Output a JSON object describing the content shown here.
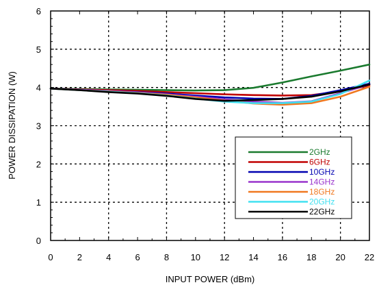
{
  "chart_data": {
    "type": "line",
    "xlabel": "INPUT POWER (dBm)",
    "ylabel": "POWER DISSIPATION (W)",
    "xlim": [
      0,
      22
    ],
    "ylim": [
      0,
      6
    ],
    "xticks": [
      0,
      2,
      4,
      6,
      8,
      10,
      12,
      14,
      16,
      18,
      20,
      22
    ],
    "yticks": [
      0,
      1,
      2,
      3,
      4,
      5,
      6
    ],
    "grid": true,
    "legend_position": "bottom-right",
    "series": [
      {
        "name": "2GHz",
        "color": "#1a7a2e",
        "x": [
          0,
          2,
          4,
          6,
          8,
          10,
          12,
          14,
          16,
          18,
          20,
          22
        ],
        "y": [
          3.97,
          3.96,
          3.95,
          3.94,
          3.93,
          3.92,
          3.93,
          3.99,
          4.13,
          4.29,
          4.44,
          4.6
        ]
      },
      {
        "name": "6GHz",
        "color": "#c00000",
        "x": [
          0,
          2,
          4,
          6,
          8,
          10,
          12,
          14,
          16,
          18,
          20,
          22
        ],
        "y": [
          3.97,
          3.95,
          3.93,
          3.91,
          3.88,
          3.85,
          3.82,
          3.8,
          3.79,
          3.8,
          3.9,
          4.05
        ]
      },
      {
        "name": "10GHz",
        "color": "#0000b0",
        "x": [
          0,
          2,
          4,
          6,
          8,
          10,
          12,
          14,
          16,
          18,
          20,
          22
        ],
        "y": [
          3.97,
          3.94,
          3.91,
          3.88,
          3.84,
          3.79,
          3.74,
          3.71,
          3.7,
          3.78,
          3.93,
          4.1
        ]
      },
      {
        "name": "14GHz",
        "color": "#9933cc",
        "x": [
          0,
          2,
          4,
          6,
          8,
          10,
          12,
          14,
          16,
          18,
          20,
          22
        ],
        "y": [
          3.97,
          3.94,
          3.91,
          3.87,
          3.82,
          3.76,
          3.69,
          3.63,
          3.6,
          3.64,
          3.85,
          4.08
        ]
      },
      {
        "name": "18GHz",
        "color": "#f07820",
        "x": [
          0,
          2,
          4,
          6,
          8,
          10,
          12,
          14,
          16,
          18,
          20,
          22
        ],
        "y": [
          3.97,
          3.93,
          3.9,
          3.86,
          3.81,
          3.74,
          3.66,
          3.58,
          3.55,
          3.59,
          3.76,
          4.02
        ]
      },
      {
        "name": "20GHz",
        "color": "#40e0f0",
        "x": [
          0,
          2,
          4,
          6,
          8,
          10,
          12,
          14,
          16,
          18,
          20,
          22
        ],
        "y": [
          3.97,
          3.93,
          3.89,
          3.85,
          3.79,
          3.71,
          3.63,
          3.59,
          3.59,
          3.63,
          3.83,
          4.18
        ]
      },
      {
        "name": "22GHz",
        "color": "#000000",
        "x": [
          0,
          2,
          4,
          6,
          8,
          10,
          12,
          14,
          16,
          18,
          20,
          22
        ],
        "y": [
          3.97,
          3.93,
          3.88,
          3.84,
          3.78,
          3.7,
          3.65,
          3.67,
          3.7,
          3.76,
          3.9,
          4.08
        ]
      }
    ]
  }
}
